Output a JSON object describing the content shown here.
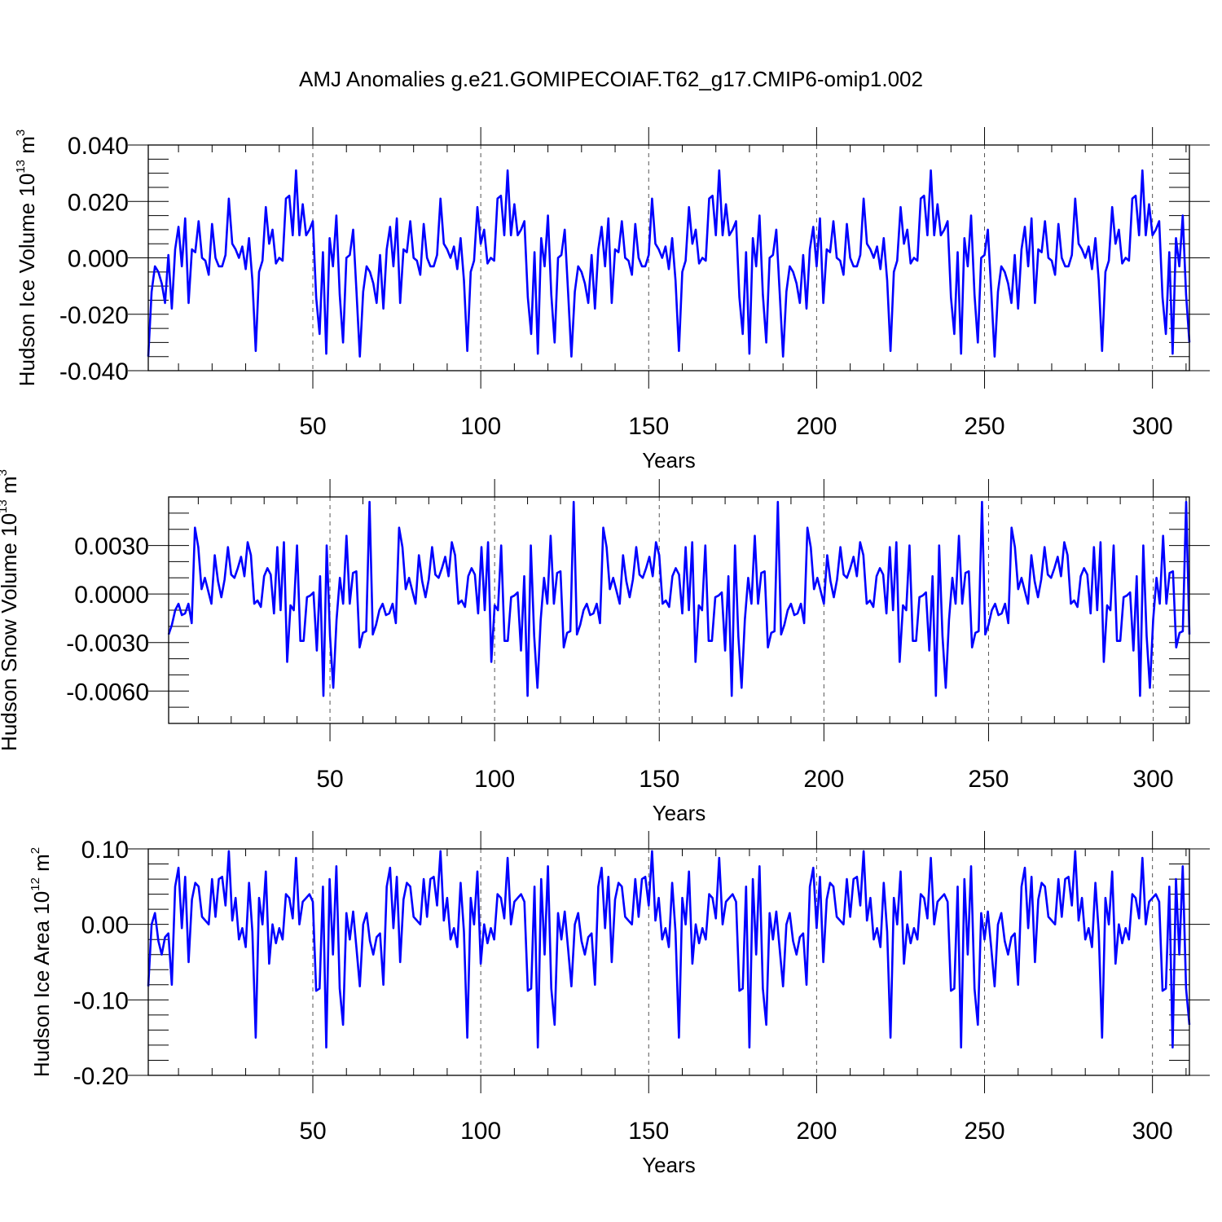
{
  "title": "AMJ Anomalies g.e21.GOMIPECOIAF.T62_g17.CMIP6-omip1.002",
  "line_color": "#0000ff",
  "chart_data": [
    {
      "type": "line",
      "name": "ice-volume",
      "ylabel": {
        "text": "Hudson Ice Volume 10",
        "sup": "13",
        "unit": " m",
        "unit_sup": "3"
      },
      "xlabel": "Years",
      "xlim": [
        1,
        311
      ],
      "ylim": [
        -0.04,
        0.04
      ],
      "yticks": [
        -0.04,
        -0.02,
        0.0,
        0.02,
        0.04
      ],
      "ytick_labels": [
        "-0.040",
        "-0.020",
        "0.000",
        "0.020",
        "0.040"
      ],
      "yminor": 0.005,
      "xticks": [
        50,
        100,
        150,
        200,
        250,
        300
      ],
      "xtick_labels": [
        "50",
        "100",
        "150",
        "200",
        "250",
        "300"
      ],
      "xminor": 10,
      "vlines": [
        50,
        100,
        150,
        200,
        250,
        300
      ],
      "period_values": [
        -0.035,
        -0.012,
        -0.003,
        -0.005,
        -0.009,
        -0.016,
        0.001,
        -0.018,
        0.003,
        0.011,
        -0.003,
        0.014,
        -0.016,
        0.003,
        0.002,
        0.013,
        0.0,
        -0.001,
        -0.006,
        0.012,
        0.0,
        -0.003,
        -0.003,
        0.001,
        0.021,
        0.005,
        0.003,
        0.0,
        0.004,
        -0.004,
        0.007,
        -0.008,
        -0.033,
        -0.005,
        -0.001,
        0.018,
        0.005,
        0.01,
        -0.002,
        0.0,
        -0.001,
        0.021,
        0.022,
        0.008,
        0.031,
        0.008,
        0.019,
        0.008,
        0.01,
        0.013,
        -0.014,
        -0.027,
        0.002,
        -0.034,
        0.007,
        -0.003,
        0.015,
        -0.013,
        -0.03,
        0.0,
        0.001,
        0.01,
        -0.012
      ]
    },
    {
      "type": "line",
      "name": "snow-volume",
      "ylabel": {
        "text": "Hudson Snow Volume 10",
        "sup": "13",
        "unit": " m",
        "unit_sup": "3"
      },
      "xlabel": "Years",
      "xlim": [
        1,
        311
      ],
      "ylim": [
        -0.008,
        0.006
      ],
      "yticks": [
        -0.006,
        -0.003,
        0.0,
        0.003
      ],
      "ytick_labels": [
        "-0.0060",
        "-0.0030",
        "0.0000",
        "0.0030"
      ],
      "yminor": 0.001,
      "xticks": [
        50,
        100,
        150,
        200,
        250,
        300
      ],
      "xtick_labels": [
        "50",
        "100",
        "150",
        "200",
        "250",
        "300"
      ],
      "xminor": 10,
      "vlines": [
        50,
        100,
        150,
        200,
        250,
        300
      ],
      "period_values": [
        -0.0025,
        -0.0019,
        -0.001,
        -0.0006,
        -0.0013,
        -0.0012,
        -0.0006,
        -0.0018,
        0.0041,
        0.0029,
        0.0003,
        0.001,
        0.0002,
        -0.0006,
        0.0024,
        0.0008,
        -0.0002,
        0.0009,
        0.0029,
        0.0012,
        0.001,
        0.0016,
        0.0023,
        0.0011,
        0.0032,
        0.0024,
        -0.0006,
        -0.0004,
        -0.0008,
        0.0011,
        0.0016,
        0.0012,
        -0.0012,
        0.0029,
        -0.001,
        0.0032,
        -0.0042,
        -0.0007,
        -0.001,
        0.003,
        -0.0029,
        -0.0029,
        -0.0002,
        -0.0001,
        0.0001,
        -0.0035,
        0.0011,
        -0.0063,
        0.003,
        -0.0026,
        -0.0058,
        -0.0016,
        0.001,
        -0.0006,
        0.0036,
        -0.0006,
        0.0013,
        0.0014,
        -0.0033,
        -0.0024,
        -0.0023,
        0.0057
      ]
    },
    {
      "type": "line",
      "name": "ice-area",
      "ylabel": {
        "text": "Hudson Ice Area 10",
        "sup": "12",
        "unit": " m",
        "unit_sup": "2"
      },
      "xlabel": "Years",
      "xlim": [
        1,
        311
      ],
      "ylim": [
        -0.2,
        0.1
      ],
      "yticks": [
        -0.2,
        -0.1,
        0.0,
        0.1
      ],
      "ytick_labels": [
        "-0.20",
        "-0.10",
        "0.00",
        "0.10"
      ],
      "yminor": 0.02,
      "xticks": [
        50,
        100,
        150,
        200,
        250,
        300
      ],
      "xtick_labels": [
        "50",
        "100",
        "150",
        "200",
        "250",
        "300"
      ],
      "xminor": 10,
      "vlines": [
        50,
        100,
        150,
        200,
        250,
        300
      ],
      "period_values": [
        -0.082,
        0.0,
        0.015,
        -0.022,
        -0.04,
        -0.017,
        -0.012,
        -0.08,
        0.05,
        0.075,
        -0.005,
        0.063,
        -0.05,
        0.033,
        0.055,
        0.05,
        0.01,
        0.005,
        0.0,
        0.06,
        0.01,
        0.06,
        0.063,
        0.025,
        0.097,
        0.005,
        0.035,
        -0.02,
        -0.005,
        -0.03,
        0.055,
        -0.01,
        -0.15,
        0.035,
        0.0,
        0.07,
        -0.052,
        0.0,
        -0.025,
        -0.005,
        -0.02,
        0.04,
        0.035,
        0.008,
        0.088,
        0.0,
        0.03,
        0.035,
        0.04,
        0.03,
        -0.088,
        -0.085,
        0.05,
        -0.163,
        0.06,
        -0.04,
        0.077,
        -0.085,
        -0.133,
        0.015,
        -0.02,
        0.017,
        -0.032
      ]
    }
  ]
}
